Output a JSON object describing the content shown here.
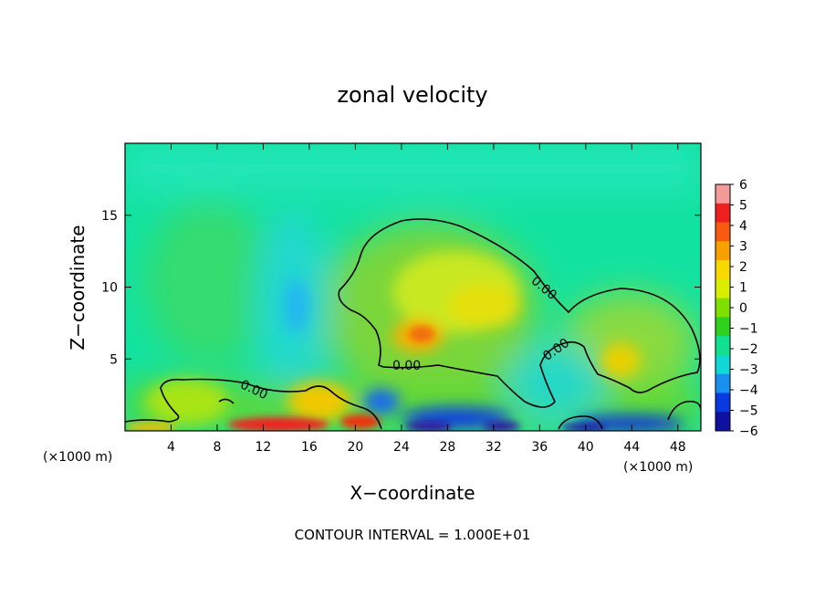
{
  "chart_data": {
    "type": "heatmap",
    "title": "zonal velocity",
    "xlabel": "X−coordinate",
    "ylabel": "Z−coordinate",
    "x_unit": "(×1000 m)",
    "y_unit": "(×1000 m)",
    "xlim": [
      0,
      50
    ],
    "ylim": [
      0,
      20
    ],
    "x_ticks": [
      4,
      8,
      12,
      16,
      20,
      24,
      28,
      32,
      36,
      40,
      44,
      48
    ],
    "y_ticks": [
      5,
      10,
      15
    ],
    "colorbar": {
      "min": -6,
      "max": 6,
      "ticks": [
        "6",
        "5",
        "4",
        "3",
        "2",
        "1",
        "0",
        "−1",
        "−2",
        "−3",
        "−4",
        "−5",
        "−6"
      ],
      "colors": [
        "#f49a9a",
        "#f02020",
        "#f85a10",
        "#f8a000",
        "#f8d800",
        "#d8f000",
        "#80e000",
        "#30d020",
        "#10e090",
        "#10d8d8",
        "#1890f0",
        "#0838e0",
        "#1010a0"
      ]
    },
    "contour_level_label": "0.00",
    "contour_label_count": 4,
    "footer": "CONTOUR INTERVAL = 1.000E+01",
    "features": [
      {
        "x": 12,
        "z": 0.4,
        "value": 5,
        "kind": "positive core"
      },
      {
        "x": 20,
        "z": 0.7,
        "value": 5,
        "kind": "positive core"
      },
      {
        "x": 26,
        "z": 6.8,
        "value": 3,
        "kind": "positive core"
      },
      {
        "x": 29,
        "z": 10,
        "value": 2,
        "kind": "positive core"
      },
      {
        "x": 43,
        "z": 5,
        "value": 2.5,
        "kind": "positive core"
      },
      {
        "x": 22,
        "z": 2,
        "value": -3,
        "kind": "negative core"
      },
      {
        "x": 28,
        "z": 0.8,
        "value": -4,
        "kind": "negative core"
      },
      {
        "x": 43,
        "z": 0.6,
        "value": -4,
        "kind": "negative core"
      },
      {
        "x": 14,
        "z": 9,
        "value": -2,
        "kind": "negative core"
      }
    ]
  }
}
